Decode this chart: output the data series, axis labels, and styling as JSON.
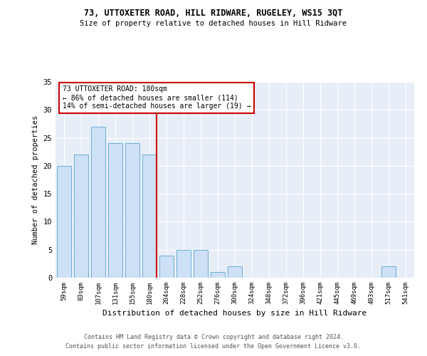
{
  "title1": "73, UTTOXETER ROAD, HILL RIDWARE, RUGELEY, WS15 3QT",
  "title2": "Size of property relative to detached houses in Hill Ridware",
  "xlabel": "Distribution of detached houses by size in Hill Ridware",
  "ylabel": "Number of detached properties",
  "footer1": "Contains HM Land Registry data © Crown copyright and database right 2024.",
  "footer2": "Contains public sector information licensed under the Open Government Licence v3.0.",
  "annotation_line1": "73 UTTOXETER ROAD: 180sqm",
  "annotation_line2": "← 86% of detached houses are smaller (114)",
  "annotation_line3": "14% of semi-detached houses are larger (19) →",
  "bar_color": "#cde0f5",
  "bar_edge_color": "#6aaed6",
  "ref_line_color": "#cc0000",
  "annotation_box_color": "#cc0000",
  "background_color": "#e8eef8",
  "categories": [
    "59sqm",
    "83sqm",
    "107sqm",
    "131sqm",
    "155sqm",
    "180sqm",
    "204sqm",
    "228sqm",
    "252sqm",
    "276sqm",
    "300sqm",
    "324sqm",
    "348sqm",
    "372sqm",
    "396sqm",
    "421sqm",
    "445sqm",
    "469sqm",
    "493sqm",
    "517sqm",
    "541sqm"
  ],
  "values": [
    20,
    22,
    27,
    24,
    24,
    22,
    4,
    5,
    5,
    1,
    2,
    0,
    0,
    0,
    0,
    0,
    0,
    0,
    0,
    2,
    0
  ],
  "ref_line_index": 5,
  "ylim": [
    0,
    35
  ],
  "yticks": [
    0,
    5,
    10,
    15,
    20,
    25,
    30,
    35
  ]
}
